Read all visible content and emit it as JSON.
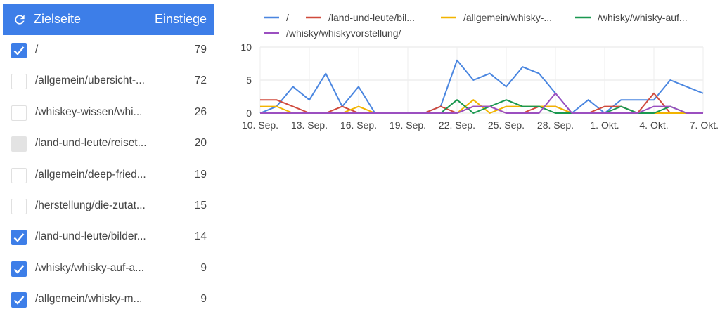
{
  "table": {
    "header": {
      "page_label": "Zielseite",
      "entries_label": "Einstiege",
      "refresh_icon": "refresh-icon"
    },
    "colors": {
      "header_bg": "#3d7ee8",
      "checkbox_checked": "#3d7ee8"
    },
    "rows": [
      {
        "label": "/",
        "value": "79",
        "checked": true
      },
      {
        "label": "/allgemein/ubersicht-...",
        "value": "72",
        "checked": false
      },
      {
        "label": "/whiskey-wissen/whi...",
        "value": "26",
        "checked": false
      },
      {
        "label": "/land-und-leute/reiset...",
        "value": "20",
        "checked": false,
        "hover": true
      },
      {
        "label": "/allgemein/deep-fried...",
        "value": "19",
        "checked": false
      },
      {
        "label": "/herstellung/die-zutat...",
        "value": "15",
        "checked": false
      },
      {
        "label": "/land-und-leute/bilder...",
        "value": "14",
        "checked": true
      },
      {
        "label": "/whisky/whisky-auf-a...",
        "value": "9",
        "checked": true
      },
      {
        "label": "/allgemein/whisky-m...",
        "value": "9",
        "checked": true
      }
    ]
  },
  "chart_data": {
    "type": "line",
    "x": [
      "10. Sep.",
      "11. Sep.",
      "12. Sep.",
      "13. Sep.",
      "14. Sep.",
      "15. Sep.",
      "16. Sep.",
      "17. Sep.",
      "18. Sep.",
      "19. Sep.",
      "20. Sep.",
      "21. Sep.",
      "22. Sep.",
      "23. Sep.",
      "24. Sep.",
      "25. Sep.",
      "26. Sep.",
      "27. Sep.",
      "28. Sep.",
      "29. Sep.",
      "30. Sep.",
      "1. Okt.",
      "2. Okt.",
      "3. Okt.",
      "4. Okt.",
      "5. Okt.",
      "6. Okt.",
      "7. Okt."
    ],
    "x_tick_labels": [
      "10. Sep.",
      "13. Sep.",
      "16. Sep.",
      "19. Sep.",
      "22. Sep.",
      "25. Sep.",
      "28. Sep.",
      "1. Okt.",
      "4. Okt.",
      "7. Okt."
    ],
    "y_ticks": [
      "0",
      "5",
      "10"
    ],
    "ylim": [
      0,
      10
    ],
    "grid": true,
    "legend_position": "top",
    "series": [
      {
        "name": "/",
        "color": "#4a86e0",
        "values": [
          0,
          1,
          4,
          2,
          6,
          1,
          4,
          0,
          0,
          0,
          0,
          1,
          8,
          5,
          6,
          4,
          7,
          6,
          3,
          0,
          2,
          0,
          2,
          2,
          2,
          5,
          4,
          3
        ]
      },
      {
        "name": "/land-und-leute/bil...",
        "color": "#d04a3c",
        "values": [
          2,
          2,
          1,
          0,
          0,
          1,
          0,
          0,
          0,
          0,
          0,
          1,
          0,
          1,
          1,
          0,
          0,
          1,
          1,
          0,
          0,
          1,
          1,
          0,
          3,
          0,
          0,
          0
        ]
      },
      {
        "name": "/allgemein/whisky-...",
        "color": "#f2b400",
        "values": [
          1,
          1,
          0,
          0,
          0,
          0,
          1,
          0,
          0,
          0,
          0,
          0,
          0,
          2,
          0,
          1,
          1,
          1,
          1,
          0,
          0,
          0,
          0,
          0,
          0,
          0,
          0,
          0
        ]
      },
      {
        "name": "/whisky/whisky-auf...",
        "color": "#1a9850",
        "values": [
          0,
          0,
          0,
          0,
          0,
          0,
          0,
          0,
          0,
          0,
          0,
          0,
          2,
          0,
          1,
          2,
          1,
          1,
          0,
          0,
          0,
          0,
          1,
          0,
          0,
          1,
          0,
          0
        ]
      },
      {
        "name": "/whisky/whiskyvorstellung/",
        "color": "#9b4fc0",
        "values": [
          0,
          0,
          0,
          0,
          0,
          0,
          0,
          0,
          0,
          0,
          0,
          0,
          0,
          1,
          1,
          0,
          0,
          0,
          3,
          0,
          0,
          0,
          0,
          0,
          1,
          1,
          0,
          0
        ]
      }
    ]
  }
}
